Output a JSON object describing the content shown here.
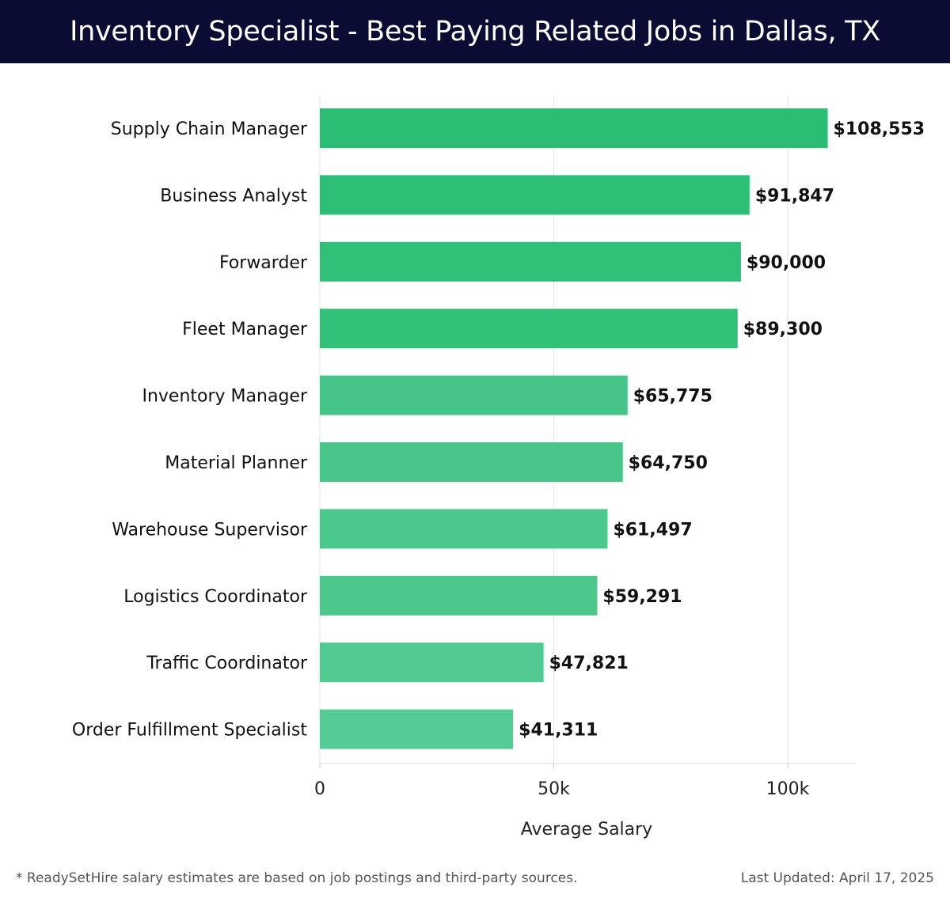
{
  "header": {
    "title": "Inventory Specialist - Best Paying Related Jobs in Dallas, TX"
  },
  "chart_data": {
    "type": "bar",
    "orientation": "horizontal",
    "title": "Inventory Specialist - Best Paying Related Jobs in Dallas, TX",
    "xlabel": "Average Salary",
    "ylabel": "",
    "xlim": [
      0,
      115000
    ],
    "xticks": [
      0,
      50000,
      100000
    ],
    "xtick_labels": [
      "0",
      "50k",
      "100k"
    ],
    "grid": true,
    "categories": [
      "Supply Chain Manager",
      "Business Analyst",
      "Forwarder",
      "Fleet Manager",
      "Inventory Manager",
      "Material Planner",
      "Warehouse Supervisor",
      "Logistics Coordinator",
      "Traffic Coordinator",
      "Order Fulfillment Specialist"
    ],
    "values": [
      108553,
      91847,
      90000,
      89300,
      65775,
      64750,
      61497,
      59291,
      47821,
      41311
    ],
    "value_labels": [
      "$108,553",
      "$91,847",
      "$90,000",
      "$89,300",
      "$65,775",
      "$64,750",
      "$61,497",
      "$59,291",
      "$47,821",
      "$41,311"
    ],
    "colors": [
      "#2abd73",
      "#2ebf76",
      "#31c078",
      "#33c17a",
      "#45c587",
      "#47c689",
      "#4bc88c",
      "#4dc88d",
      "#52cb92",
      "#55cc95"
    ]
  },
  "footer": {
    "note": "* ReadySetHire salary estimates are based on job postings and third-party sources.",
    "updated": "Last Updated: April 17, 2025"
  }
}
